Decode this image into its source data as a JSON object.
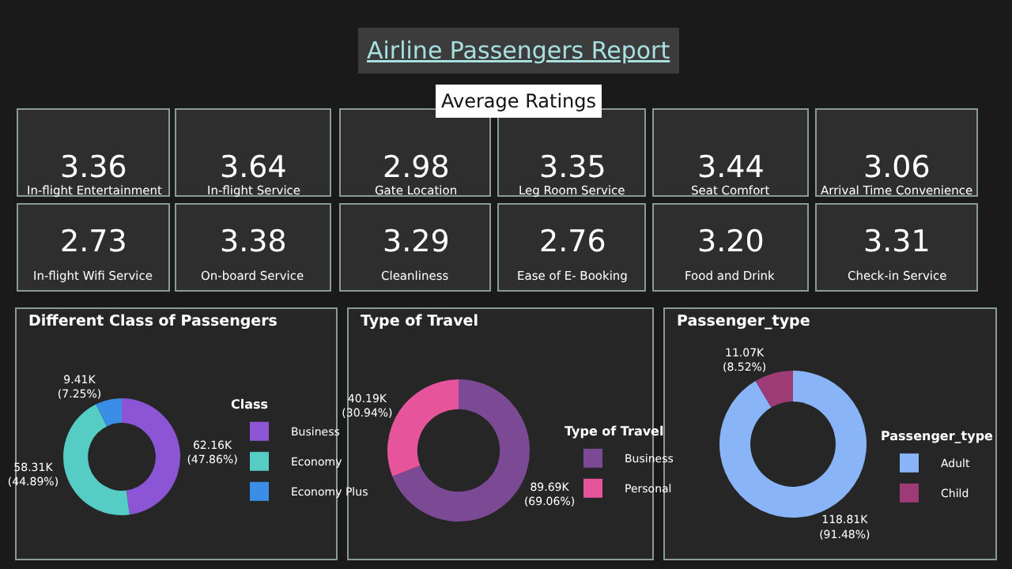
{
  "chart_data": [
    {
      "type": "other",
      "title": "Airline Passengers Report",
      "subtitle": "Average Ratings",
      "categories": [
        "In-flight Entertainment",
        "In-flight Service",
        "Gate Location",
        "Leg Room Service",
        "Seat Comfort",
        "Arrival Time Convenience",
        "In-flight Wifi Service",
        "On-board Service",
        "Cleanliness",
        "Ease of E- Booking",
        "Food and Drink",
        "Check-in Service"
      ],
      "values": [
        3.36,
        3.64,
        2.98,
        3.35,
        3.44,
        3.06,
        2.73,
        3.38,
        3.29,
        2.76,
        3.2,
        3.31
      ],
      "value_labels": [
        "3.36",
        "3.64",
        "2.98",
        "3.35",
        "3.44",
        "3.06",
        "2.73",
        "3.38",
        "3.29",
        "2.76",
        "3.20",
        "3.31"
      ]
    },
    {
      "type": "donut",
      "title": "Different Class of Passengers",
      "legend_title": "Class",
      "legend": "right",
      "categories": [
        "Business",
        "Economy",
        "Economy Plus"
      ],
      "values": [
        62160,
        58310,
        9410
      ],
      "value_labels": [
        "62.16K (47.86%)",
        "58.31K (44.89%)",
        "9.41K (7.25%)"
      ],
      "colors": [
        "#8b55d6",
        "#55cdc4",
        "#3a8ee6"
      ]
    },
    {
      "type": "donut",
      "title": "Type of Travel",
      "legend_title": "Type of Travel",
      "legend": "right",
      "categories": [
        "Business",
        "Personal"
      ],
      "values": [
        89690,
        40190
      ],
      "value_labels": [
        "89.69K (69.06%)",
        "40.19K (30.94%)"
      ],
      "colors": [
        "#7c4a94",
        "#e6559c"
      ]
    },
    {
      "type": "donut",
      "title": "Passenger_type",
      "legend_title": "Passenger_type",
      "legend": "right",
      "categories": [
        "Adult",
        "Child"
      ],
      "values": [
        118810,
        11070
      ],
      "value_labels": [
        "118.81K (91.48%)",
        "11.07K (8.52%)"
      ],
      "colors": [
        "#8ab4f8",
        "#9c3b75"
      ]
    }
  ]
}
